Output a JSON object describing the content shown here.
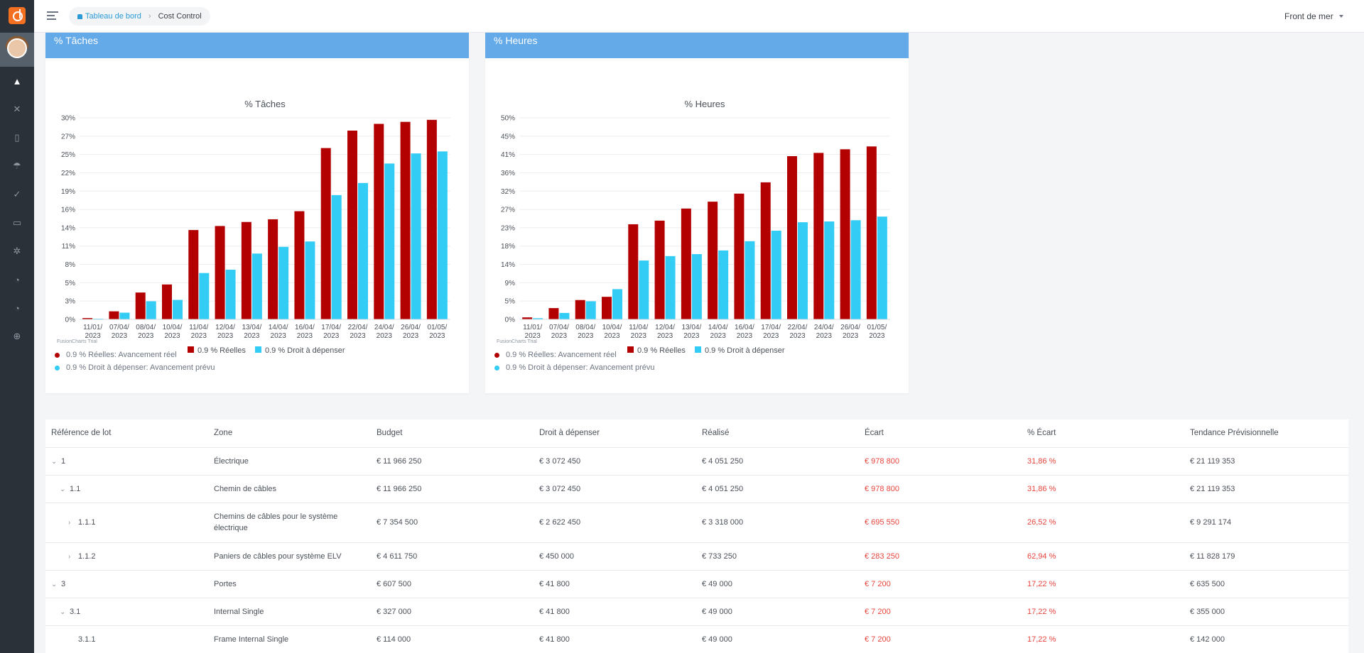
{
  "breadcrumb": {
    "home": "Tableau de bord",
    "current": "Cost Control"
  },
  "project_selector": {
    "value": "Front de mer"
  },
  "sidebar_icons": [
    "car-icon",
    "tools-icon",
    "building-icon",
    "umbrella-icon",
    "check-icon",
    "folder-icon",
    "gear-icon",
    "gauge-icon",
    "gauge-icon",
    "plus-circle-icon"
  ],
  "colors": {
    "reelles": "#b30000",
    "droit": "#33ccf5",
    "card_header": "#64a9e8",
    "negative": "#e8453c"
  },
  "chart_data": [
    {
      "type": "bar",
      "card_title": "% Tâches",
      "title": "% Tâches",
      "categories": [
        "11/01/2023",
        "07/04/2023",
        "08/04/2023",
        "10/04/2023",
        "11/04/2023",
        "12/04/2023",
        "13/04/2023",
        "14/04/2023",
        "16/04/2023",
        "17/04/2023",
        "22/04/2023",
        "24/04/2023",
        "26/04/2023",
        "01/05/2023"
      ],
      "series": [
        {
          "name": "0.9 % Réelles",
          "values": [
            0.2,
            1.2,
            4.0,
            5.2,
            13.3,
            13.9,
            14.5,
            14.9,
            16.1,
            25.5,
            28.1,
            29.1,
            29.4,
            29.7
          ]
        },
        {
          "name": "0.9 % Droit à dépenser",
          "values": [
            0.1,
            1.0,
            2.7,
            2.9,
            6.9,
            7.4,
            9.8,
            10.8,
            11.6,
            18.5,
            20.3,
            23.2,
            24.7,
            25.0
          ]
        }
      ],
      "yticks": [
        "0%",
        "3%",
        "5%",
        "8%",
        "11%",
        "14%",
        "16%",
        "19%",
        "22%",
        "25%",
        "27%",
        "30%"
      ],
      "ylim": [
        0,
        30
      ],
      "legend_notes": [
        "0.9 % Réelles: Avancement réel",
        "0.9 % Droit à dépenser: Avancement prévu"
      ],
      "watermark": "FusionCharts Trial"
    },
    {
      "type": "bar",
      "card_title": "% Heures",
      "title": "% Heures",
      "categories": [
        "11/01/2023",
        "07/04/2023",
        "08/04/2023",
        "10/04/2023",
        "11/04/2023",
        "12/04/2023",
        "13/04/2023",
        "14/04/2023",
        "16/04/2023",
        "17/04/2023",
        "22/04/2023",
        "24/04/2023",
        "26/04/2023",
        "01/05/2023"
      ],
      "series": [
        {
          "name": "0.9 % Réelles",
          "values": [
            0.5,
            2.8,
            4.8,
            5.6,
            23.6,
            24.5,
            27.5,
            29.2,
            31.2,
            34.0,
            40.5,
            41.3,
            42.2,
            42.9
          ]
        },
        {
          "name": "0.9 % Droit à dépenser",
          "values": [
            0.3,
            1.6,
            4.5,
            7.5,
            14.6,
            15.7,
            16.2,
            17.1,
            19.4,
            22.0,
            24.1,
            24.3,
            24.6,
            25.5
          ]
        }
      ],
      "yticks": [
        "0%",
        "5%",
        "9%",
        "14%",
        "18%",
        "23%",
        "27%",
        "32%",
        "36%",
        "41%",
        "45%",
        "50%"
      ],
      "ylim": [
        0,
        50
      ],
      "legend_notes": [
        "0.9 % Réelles: Avancement réel",
        "0.9 % Droit à dépenser: Avancement prévu"
      ],
      "watermark": "FusionCharts Trial"
    }
  ],
  "table": {
    "headers": [
      "Référence de lot",
      "Zone",
      "Budget",
      "Droit à dépenser",
      "Réalisé",
      "Écart",
      "% Écart",
      "Tendance Prévisionnelle"
    ],
    "rows": [
      {
        "level": 0,
        "chevron": "down",
        "ref": "1",
        "zone": "Électrique",
        "budget": "€ 11 966 250",
        "droit": "€ 3 072 450",
        "realise": "€ 4 051 250",
        "ecart": "€ 978 800",
        "pct": "31,86 %",
        "tendance": "€ 21 119 353"
      },
      {
        "level": 1,
        "chevron": "down",
        "ref": "1.1",
        "zone": "Chemin de câbles",
        "budget": "€ 11 966 250",
        "droit": "€ 3 072 450",
        "realise": "€ 4 051 250",
        "ecart": "€ 978 800",
        "pct": "31,86 %",
        "tendance": "€ 21 119 353"
      },
      {
        "level": 2,
        "chevron": "right",
        "ref": "1.1.1",
        "zone": "Chemins de câbles pour le système électrique",
        "budget": "€ 7 354 500",
        "droit": "€ 2 622 450",
        "realise": "€ 3 318 000",
        "ecart": "€ 695 550",
        "pct": "26,52 %",
        "tendance": "€ 9 291 174"
      },
      {
        "level": 2,
        "chevron": "right",
        "ref": "1.1.2",
        "zone": "Paniers de câbles pour système ELV",
        "budget": "€ 4 611 750",
        "droit": "€ 450 000",
        "realise": "€ 733 250",
        "ecart": "€ 283 250",
        "pct": "62,94 %",
        "tendance": "€ 11 828 179"
      },
      {
        "level": 0,
        "chevron": "down",
        "ref": "3",
        "zone": "Portes",
        "budget": "€ 607 500",
        "droit": "€ 41 800",
        "realise": "€ 49 000",
        "ecart": "€ 7 200",
        "pct": "17,22 %",
        "tendance": "€ 635 500"
      },
      {
        "level": 1,
        "chevron": "down",
        "ref": "3.1",
        "zone": "Internal Single",
        "budget": "€ 327 000",
        "droit": "€ 41 800",
        "realise": "€ 49 000",
        "ecart": "€ 7 200",
        "pct": "17,22 %",
        "tendance": "€ 355 000"
      },
      {
        "level": 2,
        "chevron": "none",
        "ref": "3.1.1",
        "zone": "Frame Internal Single",
        "budget": "€ 114 000",
        "droit": "€ 41 800",
        "realise": "€ 49 000",
        "ecart": "€ 7 200",
        "pct": "17,22 %",
        "tendance": "€ 142 000"
      }
    ]
  }
}
